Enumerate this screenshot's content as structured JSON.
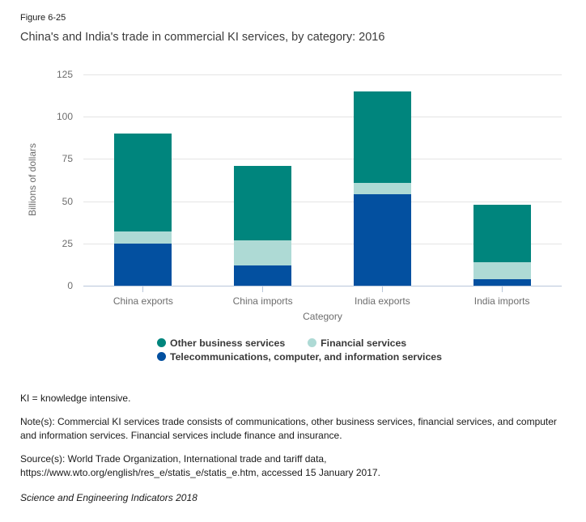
{
  "figure_label": "Figure 6-25",
  "title": "China's and India's trade in commercial KI services, by category: 2016",
  "chart_data": {
    "type": "bar",
    "stacked": true,
    "title": "China's and India's trade in commercial KI services, by category: 2016",
    "categories": [
      "China exports",
      "China imports",
      "India exports",
      "India imports"
    ],
    "series": [
      {
        "name": "Telecommunications, computer, and information services",
        "color": "#0350A0",
        "values": [
          25,
          12,
          54,
          4
        ]
      },
      {
        "name": "Financial services",
        "color": "#AEDAD5",
        "values": [
          7,
          15,
          7,
          10
        ]
      },
      {
        "name": "Other business services",
        "color": "#00857D",
        "values": [
          58,
          44,
          54,
          34
        ]
      }
    ],
    "totals": [
      90,
      71,
      115,
      48
    ],
    "xlabel": "Category",
    "ylabel": "Billions of dollars",
    "ylim": [
      0,
      125
    ],
    "yticks": [
      0,
      25,
      50,
      75,
      100,
      125
    ],
    "grid": true,
    "legend_position": "bottom"
  },
  "legend_order_note": "row1: other business services, financial services; row2: telecommunications",
  "notes": {
    "ki": "KI = knowledge intensive.",
    "note_lines": [
      "Note(s): Commercial KI services trade consists of communications, other business services, financial services, and computer",
      "and information services. Financial services include finance and insurance."
    ],
    "source_lines": [
      "Source(s): World Trade Organization, International trade and tariff data,",
      "https://www.wto.org/english/res_e/statis_e/statis_e.htm, accessed 15 January 2017."
    ],
    "footer": "Science and Engineering Indicators 2018"
  },
  "colors": {
    "axis_line": "#b9c7da",
    "gridline": "#e4e4e4",
    "axis_text": "#6d6d6d",
    "text": "#1a1a1a"
  }
}
